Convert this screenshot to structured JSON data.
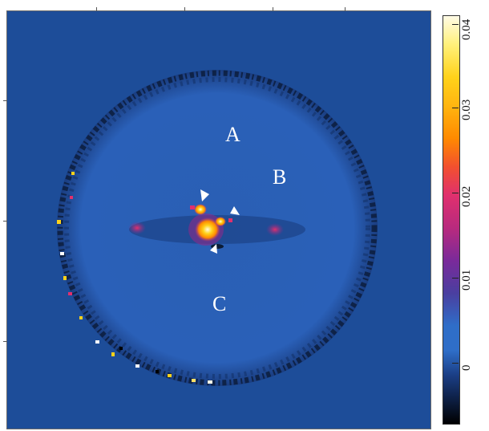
{
  "image": {
    "description_colormap": [
      "#000000",
      "#1b3f86",
      "#2f6ec8",
      "#7a2a9a",
      "#e0306e",
      "#ff8a00",
      "#ffd21a",
      "#fffbe6"
    ],
    "background_color": "#1d4d99"
  },
  "region_labels": {
    "a": "A",
    "b": "B",
    "c": "C"
  },
  "markers": [
    "arrowhead",
    "arrowhead",
    "arrowhead"
  ],
  "colorbar": {
    "ticks": [
      "0.04",
      "0.03",
      "0.02",
      "0.01",
      "0"
    ]
  }
}
